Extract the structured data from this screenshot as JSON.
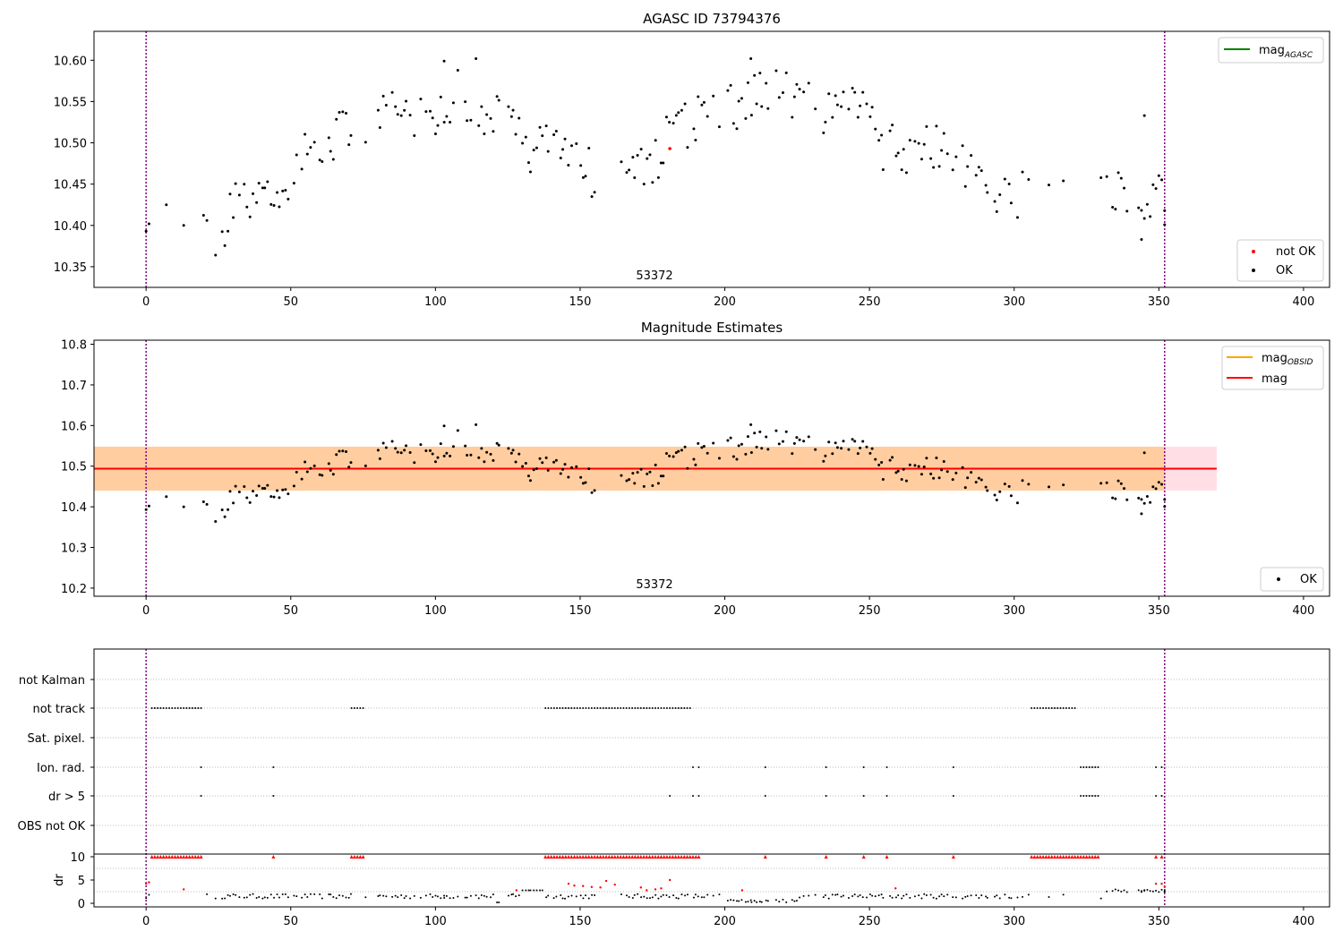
{
  "colors": {
    "ok": "#000000",
    "not_ok": "#ff0000",
    "mag_agasc": "#008000",
    "mag_obsid": "#ffa500",
    "mag": "#ff0000",
    "obs_marker": "#800080",
    "band": "#ffc0cb"
  },
  "chart_data": [
    {
      "type": "scatter",
      "title": "AGASC ID 73794376",
      "annotation": "53372",
      "xlim": [
        -18,
        409
      ],
      "ylim": [
        10.325,
        10.635
      ],
      "xticks": [
        0,
        50,
        100,
        150,
        200,
        250,
        300,
        350,
        400
      ],
      "yticks": [
        "10.35",
        "10.40",
        "10.45",
        "10.50",
        "10.55",
        "10.60"
      ],
      "obs_bounds": [
        0,
        352
      ],
      "legend_lines": [
        {
          "label": "mag",
          "sub": "AGASC"
        }
      ],
      "legend_points": [
        "not OK",
        "OK"
      ],
      "not_ok_points": [
        [
          181,
          10.493
        ]
      ]
    },
    {
      "type": "scatter",
      "title": "Magnitude Estimates",
      "annotation": "53372",
      "xlim": [
        -18,
        409
      ],
      "ylim": [
        10.18,
        10.81
      ],
      "xticks": [
        0,
        50,
        100,
        150,
        200,
        250,
        300,
        350,
        400
      ],
      "yticks": [
        "10.2",
        "10.3",
        "10.4",
        "10.5",
        "10.6",
        "10.7",
        "10.8"
      ],
      "obs_bounds": [
        0,
        352
      ],
      "mag": 10.494,
      "mag_range": [
        -18,
        370
      ],
      "band_low": 10.44,
      "band_high": 10.548,
      "legend_lines": [
        {
          "label": "mag",
          "sub": "OBSID"
        },
        {
          "label": "mag",
          "sub": ""
        }
      ],
      "legend_points": [
        "OK"
      ]
    },
    {
      "type": "scatter",
      "xlim": [
        -18,
        409
      ],
      "xticks": [
        0,
        50,
        100,
        150,
        200,
        250,
        300,
        350,
        400
      ],
      "categories": [
        "not Kalman",
        "not track",
        "Sat. pixel.",
        "Ion. rad.",
        "dr > 5",
        "OBS not OK"
      ],
      "flags": {
        "not track": {
          "ranges": [
            [
              2,
              19
            ],
            [
              71,
              75
            ],
            [
              138,
              188
            ],
            [
              306,
              321
            ]
          ],
          "points": []
        },
        "Ion. rad.": {
          "ranges": [
            [
              323,
              329
            ]
          ],
          "points": [
            19,
            44,
            189,
            191,
            214,
            235,
            248,
            256,
            279,
            349,
            351
          ]
        },
        "dr > 5": {
          "ranges": [
            [
              323,
              329
            ]
          ],
          "points": [
            19,
            44,
            181,
            189,
            191,
            214,
            235,
            248,
            256,
            279,
            349,
            351
          ]
        }
      },
      "dr_ylabel": "dr",
      "dr_ylim": [
        -0.5,
        10.5
      ],
      "dr_yticks": [
        0,
        5,
        10
      ],
      "dr_top_ranges": [
        [
          2,
          19
        ],
        [
          71,
          75
        ],
        [
          138,
          191
        ],
        [
          306,
          329
        ]
      ],
      "dr_top_points": [
        44,
        214,
        235,
        248,
        256,
        279,
        349,
        351
      ],
      "dr_red_points": [
        [
          0,
          4.2
        ],
        [
          1,
          4.5
        ],
        [
          13,
          3.0
        ],
        [
          128,
          2.8
        ],
        [
          146,
          4.2
        ],
        [
          148,
          3.8
        ],
        [
          151,
          3.7
        ],
        [
          154,
          3.5
        ],
        [
          157,
          3.4
        ],
        [
          159,
          4.8
        ],
        [
          162,
          4.0
        ],
        [
          171,
          3.4
        ],
        [
          173,
          2.8
        ],
        [
          176,
          3.0
        ],
        [
          178,
          3.2
        ],
        [
          181,
          5.0
        ],
        [
          206,
          2.8
        ],
        [
          259,
          3.2
        ],
        [
          349,
          4.2
        ],
        [
          351,
          4.2
        ],
        [
          352,
          3.5
        ]
      ]
    }
  ]
}
